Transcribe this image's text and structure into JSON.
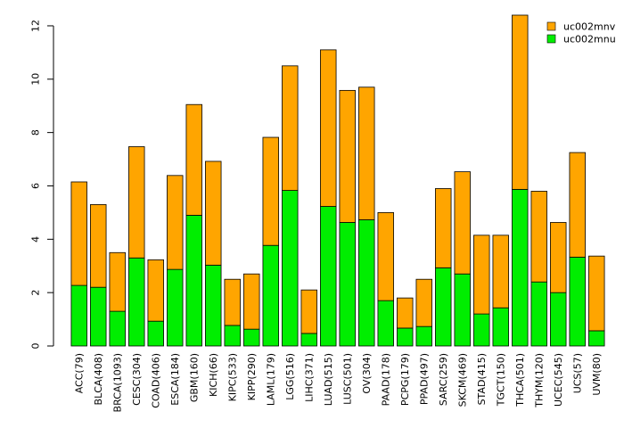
{
  "chart_data": {
    "type": "bar",
    "stacked": true,
    "title": "",
    "xlabel": "",
    "ylabel": "",
    "ylim": [
      0,
      12.5
    ],
    "yticks": [
      0,
      2,
      4,
      6,
      8,
      10,
      12
    ],
    "legend_position": "top-right",
    "categories": [
      "ACC(79)",
      "BLCA(408)",
      "BRCA(1093)",
      "CESC(304)",
      "COAD(406)",
      "ESCA(184)",
      "GBM(160)",
      "KICH(66)",
      "KIPC(533)",
      "KIPP(290)",
      "LAML(179)",
      "LGG(516)",
      "LIHC(371)",
      "LUAD(515)",
      "LUSC(501)",
      "OV(304)",
      "PAAD(178)",
      "PCPG(179)",
      "PPAD(497)",
      "SARC(259)",
      "SKCM(469)",
      "STAD(415)",
      "TGCT(150)",
      "THCA(501)",
      "THYM(120)",
      "UCEC(545)",
      "UCS(57)",
      "UVM(80)"
    ],
    "series": [
      {
        "name": "uc002mnu",
        "color": "#00ee00",
        "values": [
          2.27,
          2.2,
          1.3,
          3.3,
          0.93,
          2.87,
          4.9,
          3.03,
          0.77,
          0.63,
          3.77,
          5.83,
          0.47,
          5.23,
          4.63,
          4.73,
          1.7,
          0.67,
          0.73,
          2.93,
          2.7,
          1.2,
          1.43,
          5.87,
          2.4,
          2.0,
          3.33,
          0.57
        ]
      },
      {
        "name": "uc002mnv",
        "color": "#ffa500",
        "values": [
          3.88,
          3.1,
          2.2,
          4.17,
          2.3,
          3.52,
          4.15,
          3.89,
          1.73,
          2.07,
          4.05,
          4.67,
          1.63,
          5.87,
          4.95,
          4.97,
          3.3,
          1.13,
          1.77,
          2.97,
          3.83,
          2.95,
          2.72,
          6.53,
          3.4,
          2.63,
          3.92,
          2.8
        ]
      }
    ],
    "legend": [
      "uc002mnv",
      "uc002mnu"
    ]
  }
}
